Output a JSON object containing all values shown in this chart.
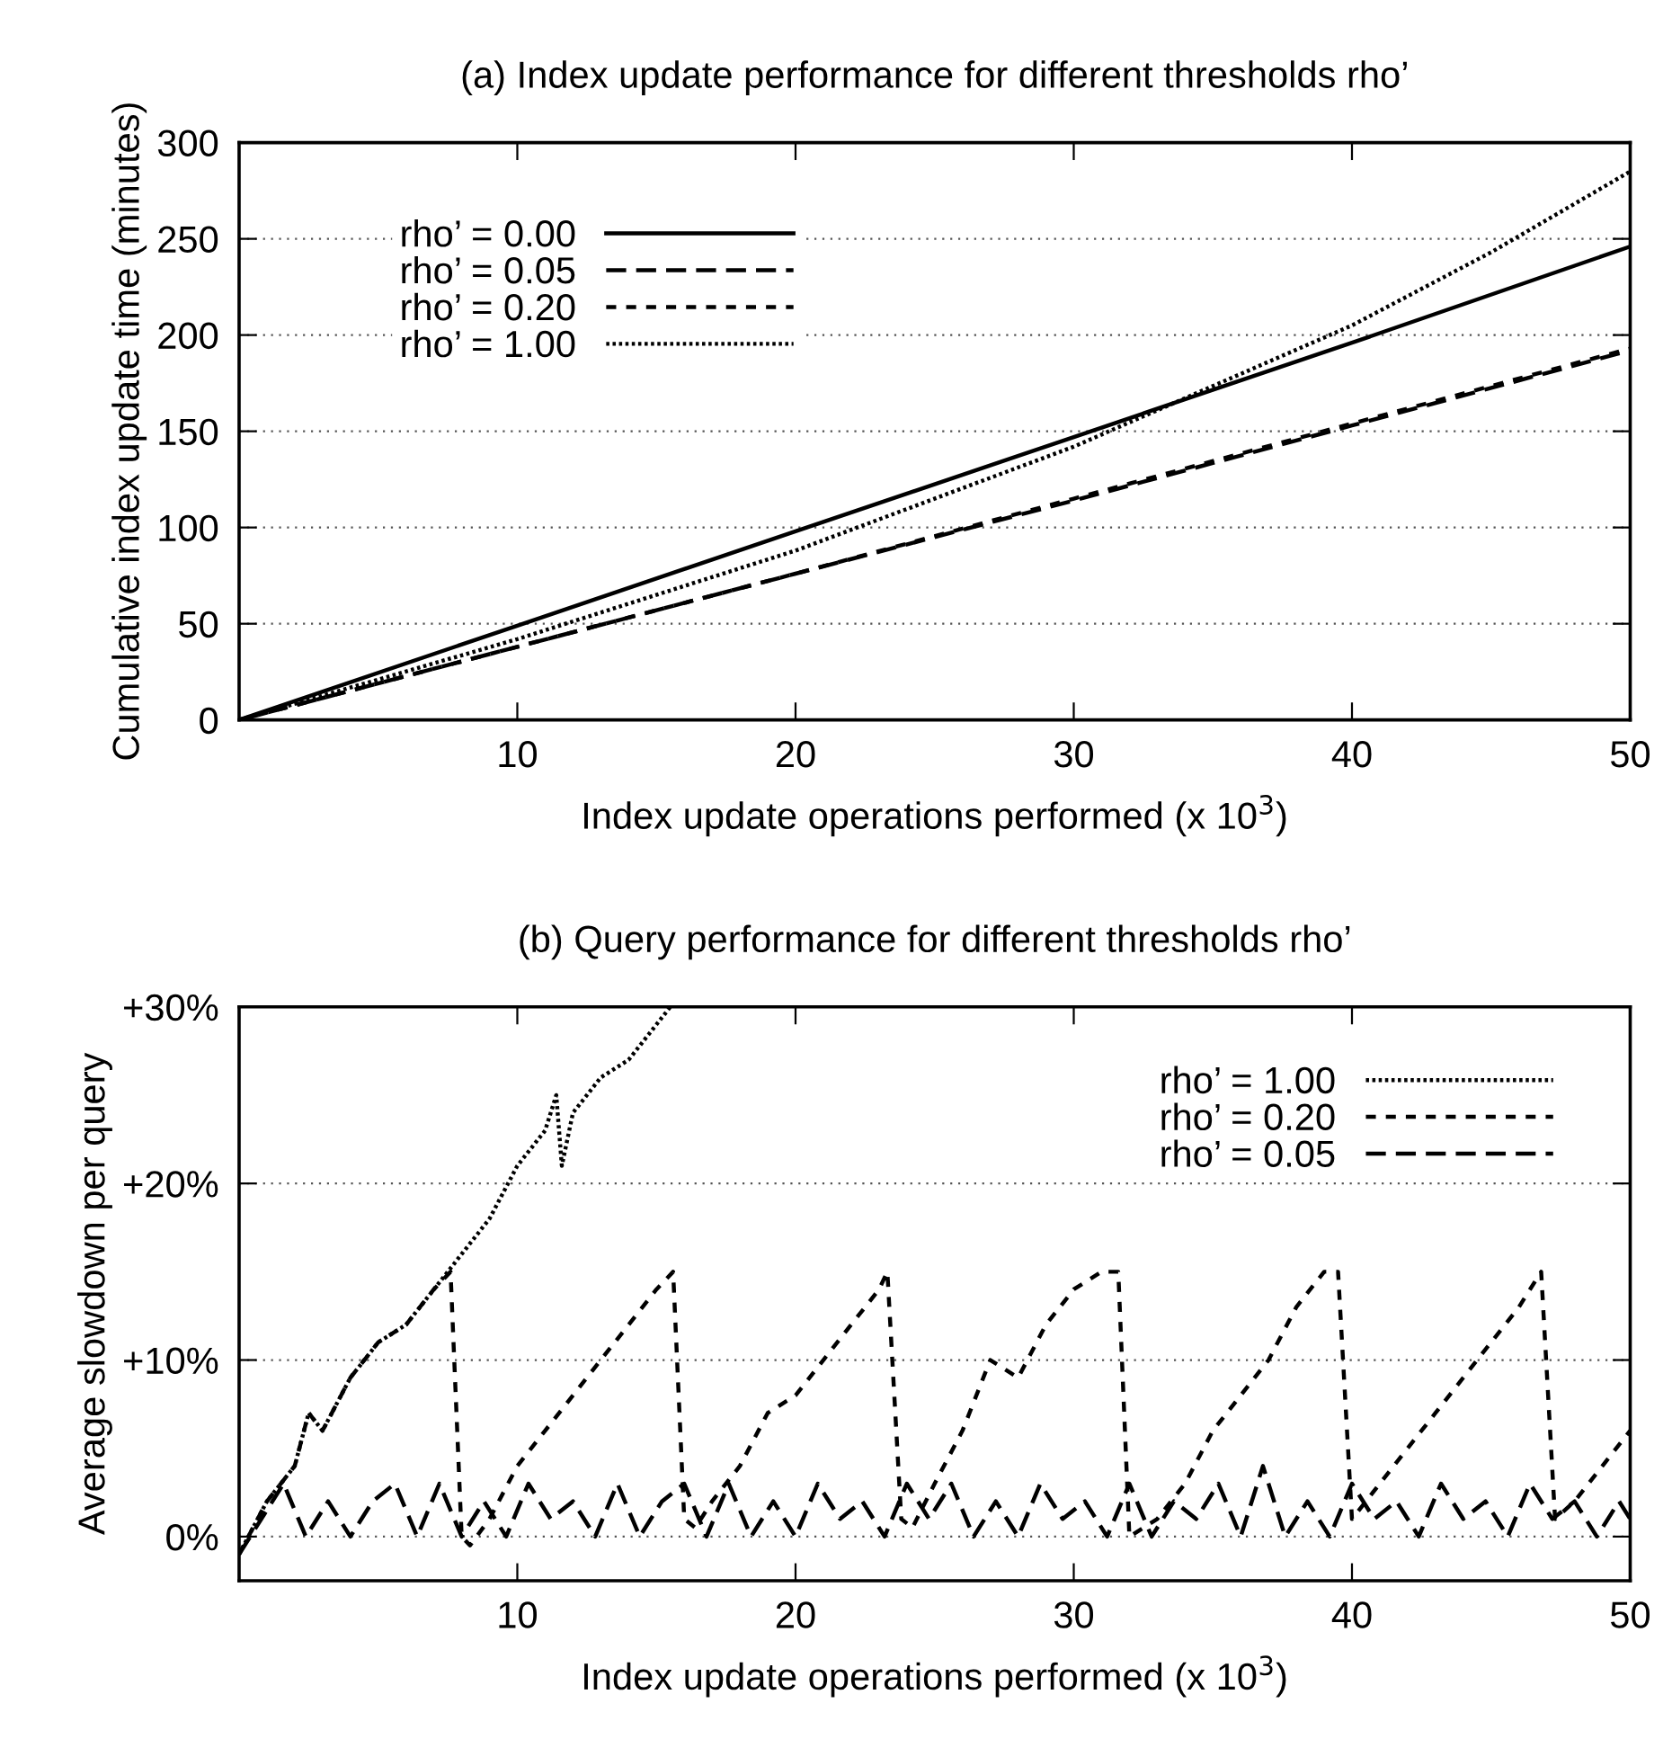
{
  "chart_data": [
    {
      "type": "line",
      "title": "(a) Index update performance for different thresholds rho’",
      "xlabel": "Index update operations performed (x 10$^{3}$)",
      "ylabel": "Cumulative index update time (minutes)",
      "xlim": [
        0,
        50
      ],
      "ylim": [
        0,
        300
      ],
      "xticks": [
        10,
        20,
        30,
        40,
        50
      ],
      "yticks": [
        0,
        50,
        100,
        150,
        200,
        250,
        300
      ],
      "grid": "y",
      "legend": "top left",
      "series": [
        {
          "name": "rho’ = 0.00",
          "color": "#000000",
          "line_style": "solid",
          "x": [
            0,
            10,
            20,
            30,
            40,
            50
          ],
          "values": [
            0,
            49,
            98,
            147,
            196,
            246
          ]
        },
        {
          "name": "rho’ = 0.05",
          "color": "#000000",
          "line_style": "dashed",
          "x": [
            0,
            10,
            20,
            30,
            40,
            50
          ],
          "values": [
            0,
            38,
            76,
            114,
            153,
            192
          ]
        },
        {
          "name": "rho’ = 0.20",
          "color": "#000000",
          "line_style": "dashed_short",
          "x": [
            0,
            10,
            20,
            30,
            40,
            50
          ],
          "values": [
            0,
            38,
            76,
            115,
            154,
            193
          ]
        },
        {
          "name": "rho’ = 1.00",
          "color": "#000000",
          "line_style": "dotted",
          "x": [
            0,
            10,
            20,
            30,
            40,
            45,
            50
          ],
          "values": [
            0,
            42,
            88,
            142,
            205,
            243,
            285
          ]
        }
      ]
    },
    {
      "type": "line",
      "title": "(b) Query performance for different thresholds rho’",
      "xlabel": "Index update operations performed (x 10$^{3}$)",
      "ylabel": "Average slowdown per query",
      "xlim": [
        0,
        50
      ],
      "ylim": [
        -2.5,
        30
      ],
      "xticks": [
        10,
        20,
        30,
        40,
        50
      ],
      "yticks": [
        {
          "value": 0,
          "label": "0%"
        },
        {
          "value": 10,
          "label": "+10%"
        },
        {
          "value": 20,
          "label": "+20%"
        },
        {
          "value": 30,
          "label": "+30%"
        }
      ],
      "grid": "y",
      "legend": "top right",
      "series": [
        {
          "name": "rho’ = 1.00",
          "color": "#000000",
          "line_style": "dotted",
          "x": [
            0,
            1,
            2,
            2.5,
            3,
            4,
            5,
            6,
            7,
            8,
            9,
            10,
            11,
            11.4,
            11.6,
            12,
            13,
            14,
            15,
            15.5
          ],
          "values": [
            -1,
            2,
            4,
            7,
            6,
            9,
            11,
            12,
            14,
            16,
            18,
            21,
            23,
            25,
            21,
            24,
            26,
            27,
            29,
            30
          ]
        },
        {
          "name": "rho’ = 0.20",
          "color": "#000000",
          "line_style": "dashed_short",
          "x": [
            0,
            1,
            2,
            2.5,
            3,
            4,
            5,
            6,
            7,
            7.6,
            8,
            8.3,
            9,
            10,
            11,
            12,
            13,
            14,
            15,
            15.6,
            16,
            16.4,
            17,
            18,
            19,
            20,
            21,
            22,
            23,
            23.3,
            23.8,
            24.2,
            25,
            26,
            27,
            28,
            29,
            30,
            31,
            31.6,
            32,
            33,
            34,
            35,
            36,
            37,
            38,
            39,
            39.5,
            40,
            41,
            42,
            43,
            44,
            45,
            46,
            46.8,
            47.3,
            48,
            49,
            50
          ],
          "values": [
            -1,
            2,
            4,
            7,
            6,
            9,
            11,
            12,
            14,
            15,
            0,
            -0.5,
            1,
            4,
            6,
            8,
            10,
            12,
            14,
            15,
            1,
            0.5,
            2,
            4,
            7,
            8,
            10,
            12,
            14,
            15,
            1,
            0.5,
            3,
            6,
            10,
            9,
            12,
            14,
            15,
            15,
            0,
            1,
            3,
            6,
            8,
            10,
            13,
            15,
            15,
            1,
            3,
            5,
            7,
            9,
            11,
            13,
            15,
            1,
            2,
            4,
            6
          ]
        },
        {
          "name": "rho’ = 0.05",
          "color": "#000000",
          "line_style": "dashed",
          "x": [
            0,
            0.8,
            1.6,
            2.4,
            3.2,
            4,
            4.8,
            5.6,
            6.4,
            7.2,
            8,
            8.8,
            9.6,
            10.4,
            11.2,
            12,
            12.8,
            13.6,
            14.4,
            15.2,
            16,
            16.8,
            17.6,
            18.4,
            19.2,
            20,
            20.8,
            21.6,
            22.4,
            23.2,
            24,
            24.8,
            25.6,
            26.4,
            27.2,
            28,
            28.8,
            29.6,
            30.4,
            31.2,
            32,
            32.8,
            33.6,
            34.4,
            35.2,
            36,
            36.8,
            37.6,
            38.4,
            39.2,
            40,
            40.8,
            41.6,
            42.4,
            43.2,
            44,
            44.8,
            45.6,
            46.4,
            47.2,
            48,
            48.8,
            49.6,
            50
          ],
          "values": [
            -1,
            1,
            3,
            0,
            2,
            0,
            2,
            3,
            0,
            3,
            0,
            2,
            0,
            3,
            1,
            2,
            0,
            3,
            0,
            2,
            3,
            0,
            3,
            0,
            2,
            0,
            3,
            1,
            2,
            0,
            3,
            1,
            3,
            0,
            2,
            0,
            3,
            1,
            2,
            0,
            3,
            0,
            2,
            1,
            3,
            0,
            4,
            0,
            2,
            0,
            3,
            1,
            2,
            0,
            3,
            1,
            2,
            0,
            3,
            1,
            2,
            0,
            2,
            1
          ]
        }
      ]
    }
  ]
}
